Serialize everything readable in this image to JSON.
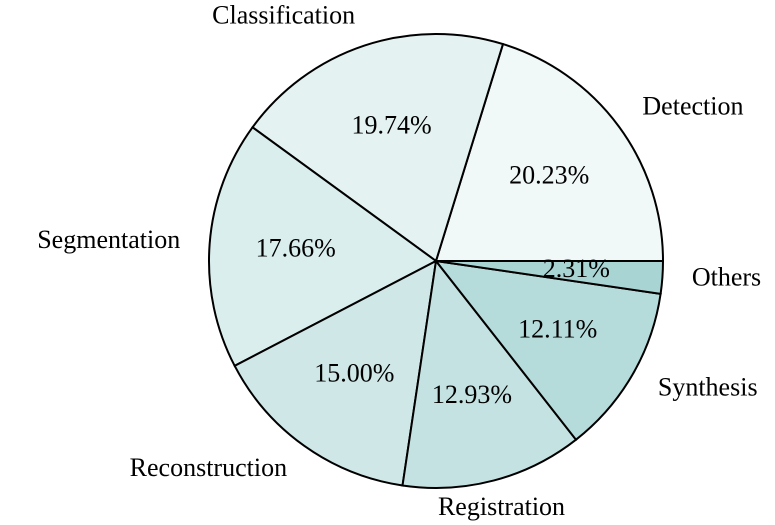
{
  "chart_data": {
    "type": "pie",
    "categories": [
      "Detection",
      "Classification",
      "Segmentation",
      "Reconstruction",
      "Registration",
      "Synthesis",
      "Others"
    ],
    "values": [
      20.23,
      19.74,
      17.66,
      15.0,
      12.93,
      12.11,
      2.31
    ],
    "value_labels": [
      "20.23%",
      "19.74%",
      "17.66%",
      "15.00%",
      "12.93%",
      "12.11%",
      "2.31%"
    ],
    "colors": [
      "#f0f8f8",
      "#e4f2f2",
      "#dbeeee",
      "#cfe7e7",
      "#c5e2e2",
      "#b6dbdb",
      "#a9d4d4"
    ]
  }
}
